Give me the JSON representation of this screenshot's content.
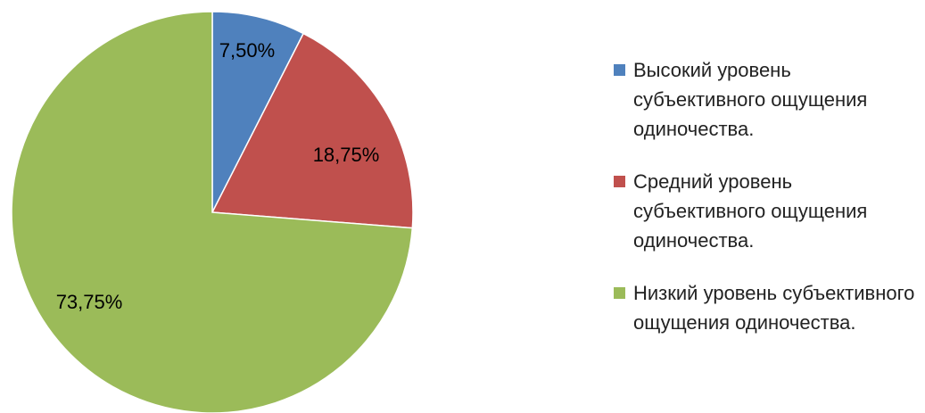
{
  "chart_data": {
    "type": "pie",
    "categories": [
      "Высокий уровень субъективного ощущения одиночества.",
      "Средний уровень субъективного ощущения одиночества.",
      "Низкий уровень субъективного ощущения одиночества."
    ],
    "values": [
      7.5,
      18.75,
      73.75
    ],
    "value_labels": [
      "7,50%",
      "18,75%",
      "73,75%"
    ],
    "colors": [
      "#4f81bd",
      "#c0504d",
      "#9bbb59"
    ],
    "legend": "right"
  }
}
